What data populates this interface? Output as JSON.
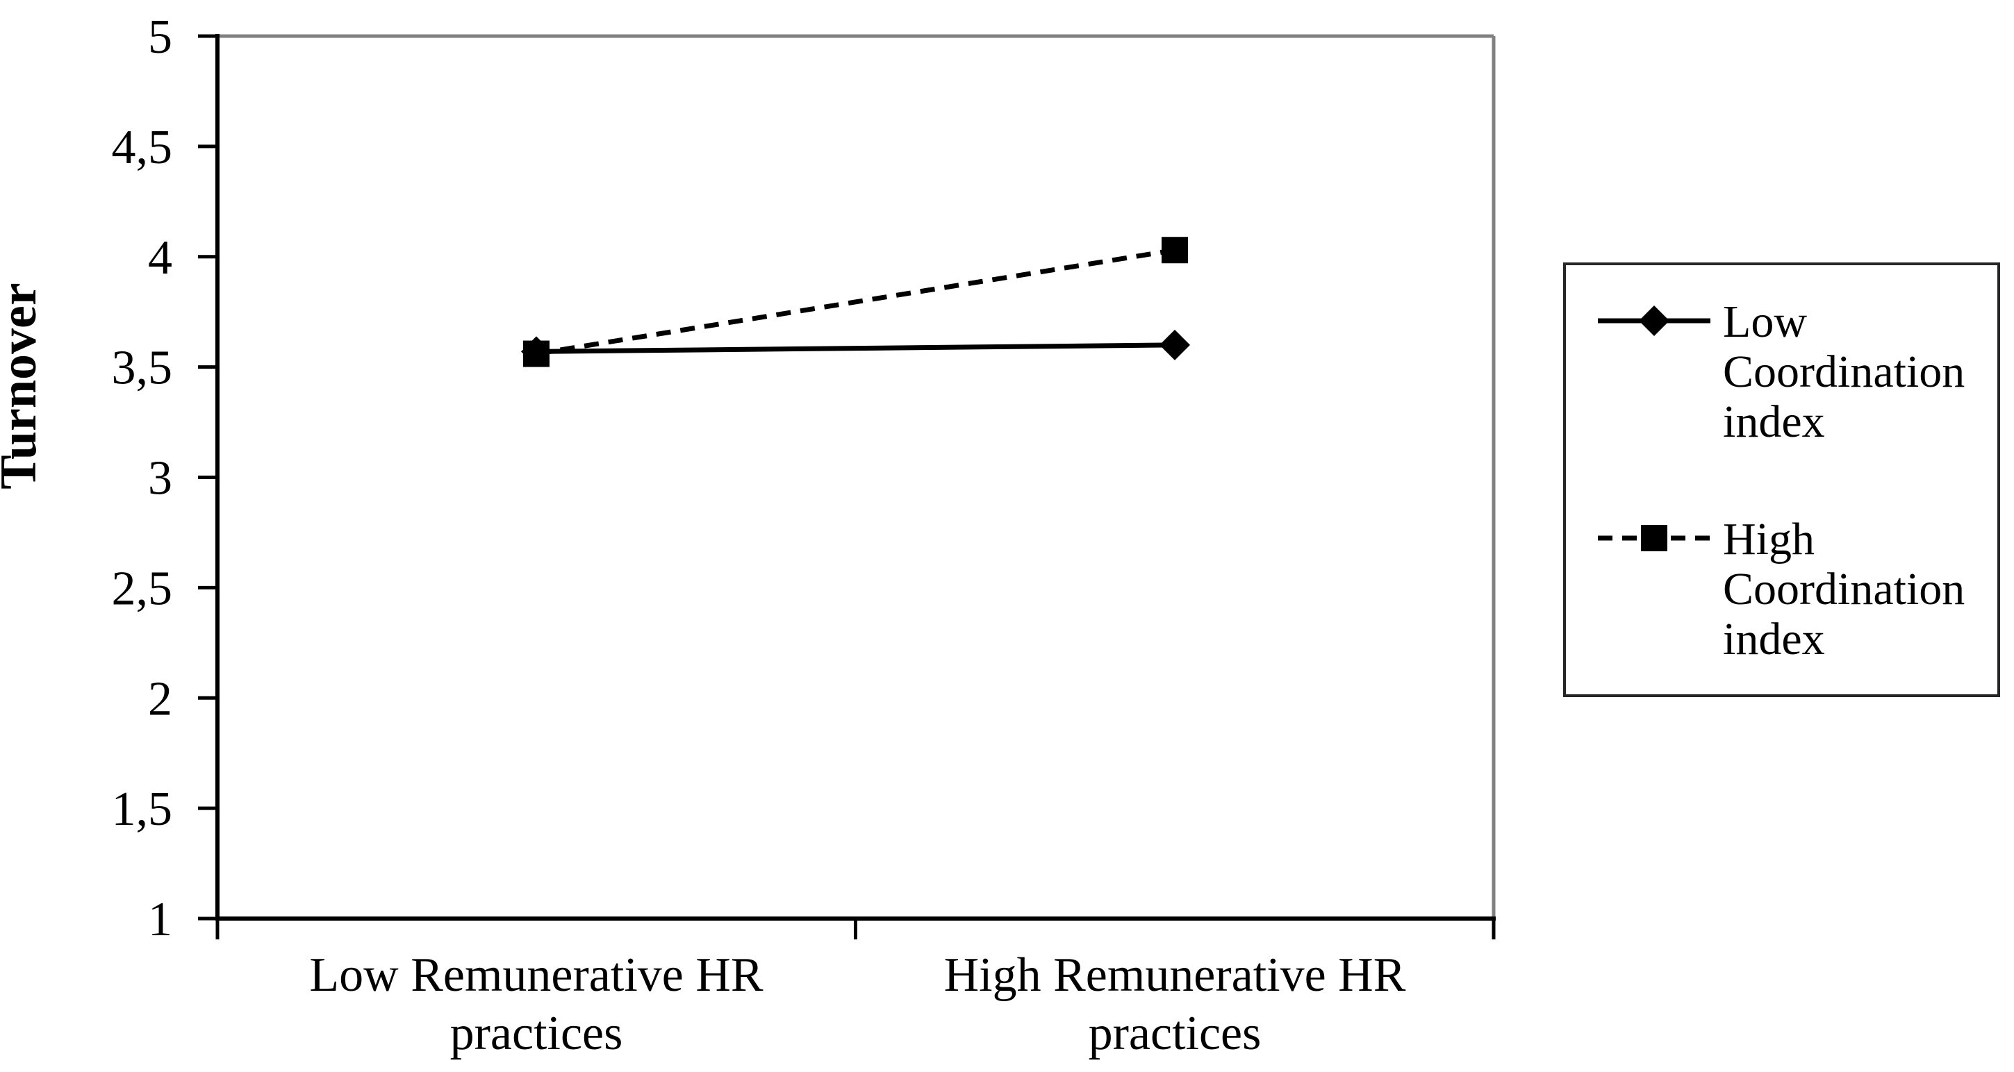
{
  "chart_data": {
    "type": "line",
    "title": "",
    "xlabel": "",
    "ylabel": "Turnover",
    "ylim": [
      1,
      5
    ],
    "yticks": [
      1,
      1.5,
      2,
      2.5,
      3,
      3.5,
      4,
      4.5,
      5
    ],
    "ytick_labels": [
      "1",
      "1,5",
      "2",
      "2,5",
      "3",
      "3,5",
      "4",
      "4,5",
      "5"
    ],
    "decimal_separator": ",",
    "grid": false,
    "categories": [
      "Low Remunerative HR practices",
      "High Remunerative HR practices"
    ],
    "category_label_lines": [
      [
        "Low Remunerative HR",
        "practices"
      ],
      [
        "High Remunerative HR",
        "practices"
      ]
    ],
    "series": [
      {
        "name": "Low Coordination index",
        "legend_label_lines": [
          "Low",
          "Coordination",
          "index"
        ],
        "values": [
          3.57,
          3.6
        ],
        "line_style": "solid",
        "marker": "diamond",
        "color": "#000000"
      },
      {
        "name": "High Coordination index",
        "legend_label_lines": [
          "High",
          "Coordination",
          "index"
        ],
        "values": [
          3.56,
          4.03
        ],
        "line_style": "dashed",
        "marker": "square",
        "color": "#000000"
      }
    ],
    "legend_position": "right",
    "colors": {
      "background": "#ffffff",
      "axis": "#000000",
      "frame_top_right": "#808080",
      "legend_border": "#262626",
      "text": "#000000"
    }
  }
}
